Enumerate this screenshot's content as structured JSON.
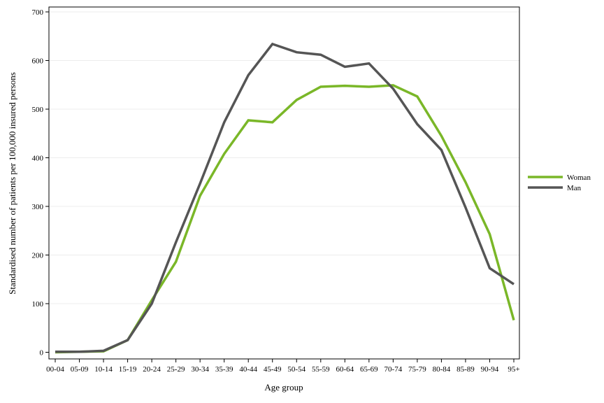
{
  "chart_data": {
    "type": "line",
    "xlabel": "Age group",
    "ylabel": "Standardised number of patients per 100,000 insured persons",
    "categories": [
      "00-04",
      "05-09",
      "10-14",
      "15-19",
      "20-24",
      "25-29",
      "30-34",
      "35-39",
      "40-44",
      "45-49",
      "50-54",
      "55-59",
      "60-64",
      "65-69",
      "70-74",
      "75-79",
      "80-84",
      "85-89",
      "90-94",
      "95+"
    ],
    "ylim": [
      0,
      700
    ],
    "yticks": [
      0,
      100,
      200,
      300,
      400,
      500,
      600,
      700
    ],
    "grid": true,
    "legend_position": "right",
    "series": [
      {
        "name": "Woman",
        "color": "#7ab728",
        "values": [
          0,
          1,
          2,
          25,
          107,
          186,
          322,
          408,
          477,
          473,
          519,
          546,
          548,
          546,
          549,
          526,
          445,
          350,
          243,
          66
        ]
      },
      {
        "name": "Man",
        "color": "#555555",
        "values": [
          1,
          1,
          3,
          25,
          100,
          226,
          347,
          473,
          570,
          634,
          617,
          612,
          587,
          594,
          542,
          469,
          416,
          298,
          173,
          140
        ]
      }
    ]
  }
}
